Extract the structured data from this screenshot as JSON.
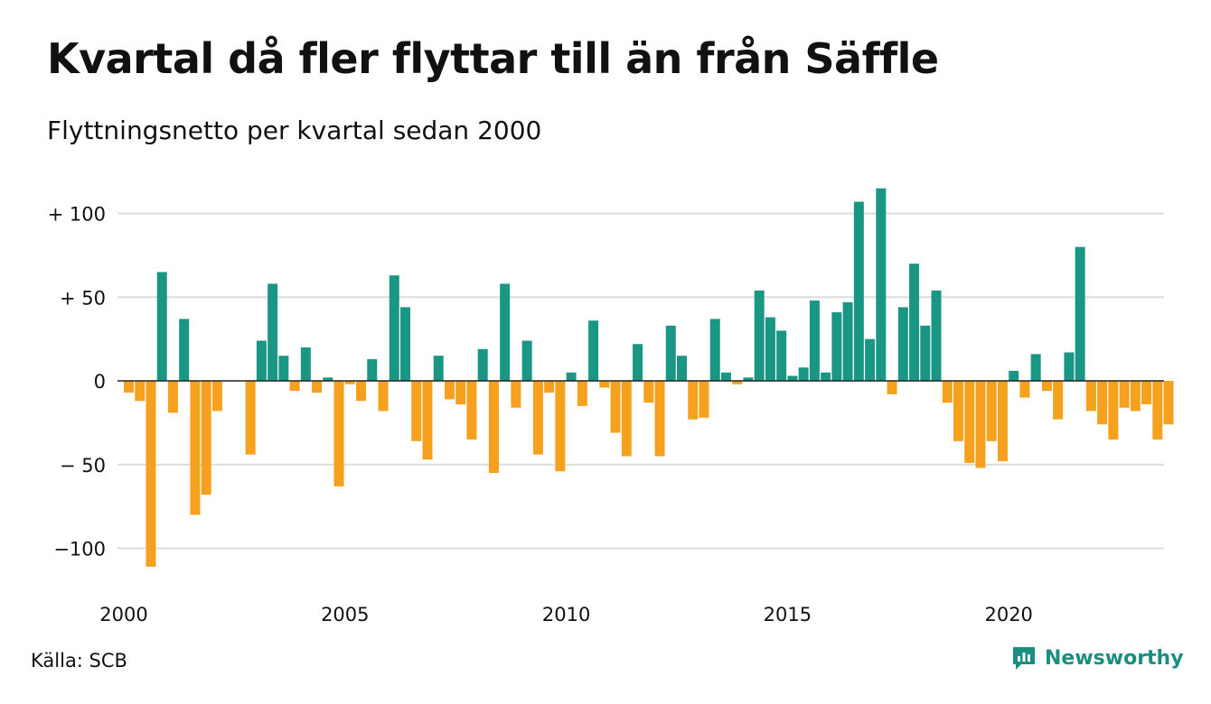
{
  "title": "Kvartal då fler flyttar till än från Säffle",
  "subtitle": "Flyttningsnetto per kvartal sedan 2000",
  "source": "Källa: SCB",
  "brand": {
    "name": "Newsworthy",
    "icon": "newsworthy-logo-icon"
  },
  "colors": {
    "positive": "#1a9685",
    "negative": "#f5a11e",
    "grid": "#dcdcdc",
    "zero_line": "#222222"
  },
  "chart_data": {
    "type": "bar",
    "xlabel": "",
    "ylabel": "",
    "x_ticks": [
      {
        "year": 2000,
        "label": "2000"
      },
      {
        "year": 2005,
        "label": "2005"
      },
      {
        "year": 2010,
        "label": "2010"
      },
      {
        "year": 2015,
        "label": "2015"
      },
      {
        "year": 2020,
        "label": "2020"
      }
    ],
    "y_ticks": [
      {
        "value": 100,
        "label": "+ 100"
      },
      {
        "value": 50,
        "label": "+  50"
      },
      {
        "value": 0,
        "label": "0"
      },
      {
        "value": -50,
        "label": "− 50"
      },
      {
        "value": -100,
        "label": "−100"
      }
    ],
    "ylim": [
      -120,
      115
    ],
    "grid": true,
    "start_year": 2000,
    "quarters_per_year": 4,
    "values": [
      -7,
      -12,
      -111,
      65,
      -19,
      37,
      -80,
      -68,
      -18,
      0,
      0,
      -44,
      24,
      58,
      15,
      -6,
      20,
      -7,
      2,
      -63,
      -2,
      -12,
      13,
      -18,
      63,
      44,
      -36,
      -47,
      15,
      -11,
      -14,
      -35,
      19,
      -55,
      58,
      -16,
      24,
      -44,
      -7,
      -54,
      5,
      -15,
      36,
      -4,
      -31,
      -45,
      22,
      -13,
      -45,
      33,
      15,
      -23,
      -22,
      37,
      5,
      -2,
      2,
      54,
      38,
      30,
      3,
      8,
      48,
      5,
      41,
      47,
      107,
      25,
      115,
      -8,
      44,
      70,
      33,
      54,
      -13,
      -36,
      -49,
      -52,
      -36,
      -48,
      6,
      -10,
      16,
      -6,
      -23,
      17,
      80,
      -18,
      -26,
      -35,
      -16,
      -18,
      -14,
      -35,
      -26
    ]
  }
}
